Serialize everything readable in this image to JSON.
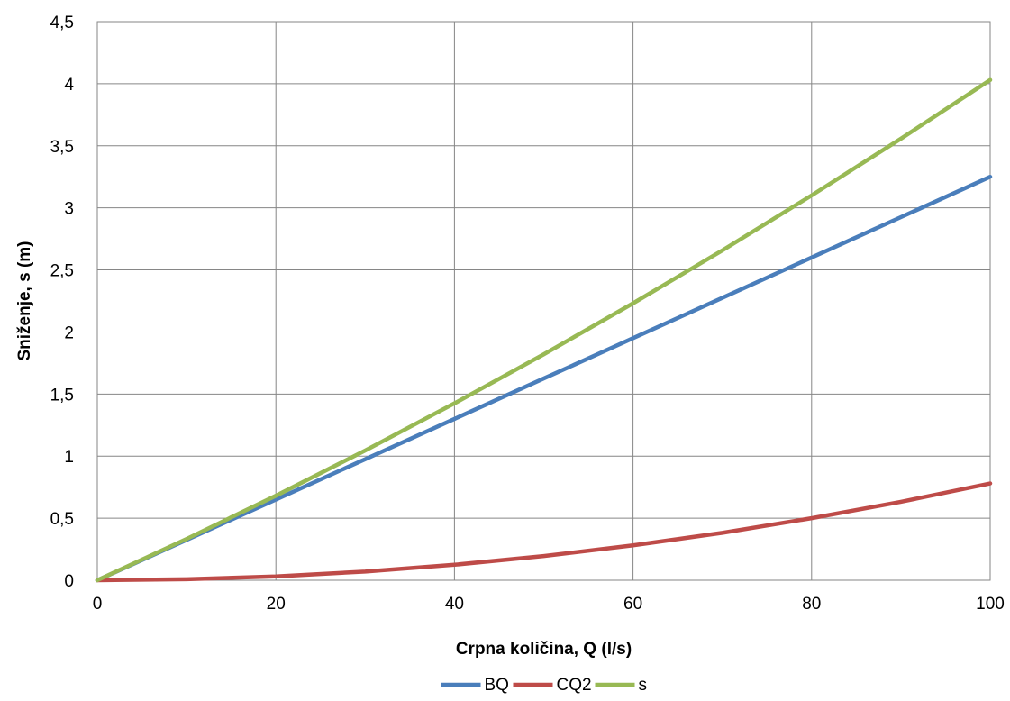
{
  "chart_data": {
    "type": "line",
    "title": "",
    "xlabel": "Crpna količina, Q (l/s)",
    "ylabel": "Sniženje, s (m)",
    "xlim": [
      0,
      100
    ],
    "ylim": [
      0,
      4.5
    ],
    "x_ticks": [
      0,
      20,
      40,
      60,
      80,
      100
    ],
    "x_tick_labels": [
      "0",
      "20",
      "40",
      "60",
      "80",
      "100"
    ],
    "y_ticks": [
      0,
      0.5,
      1,
      1.5,
      2,
      2.5,
      3,
      3.5,
      4,
      4.5
    ],
    "y_tick_labels": [
      "0",
      "0,5",
      "1",
      "1,5",
      "2",
      "2,5",
      "3",
      "3,5",
      "4",
      "4,5"
    ],
    "grid": true,
    "legend_position": "bottom",
    "x": [
      0,
      10,
      20,
      30,
      40,
      50,
      60,
      70,
      80,
      90,
      100
    ],
    "series": [
      {
        "name": "BQ",
        "color": "#4a7ebb",
        "values": [
          0,
          0.325,
          0.65,
          0.975,
          1.3,
          1.625,
          1.95,
          2.275,
          2.6,
          2.925,
          3.25
        ]
      },
      {
        "name": "CQ2",
        "color": "#be4b48",
        "values": [
          0,
          0.008,
          0.031,
          0.07,
          0.125,
          0.195,
          0.281,
          0.382,
          0.5,
          0.632,
          0.78
        ]
      },
      {
        "name": "s",
        "color": "#98b954",
        "values": [
          0,
          0.333,
          0.681,
          1.045,
          1.425,
          1.82,
          2.231,
          2.657,
          3.1,
          3.557,
          4.03
        ]
      }
    ]
  }
}
